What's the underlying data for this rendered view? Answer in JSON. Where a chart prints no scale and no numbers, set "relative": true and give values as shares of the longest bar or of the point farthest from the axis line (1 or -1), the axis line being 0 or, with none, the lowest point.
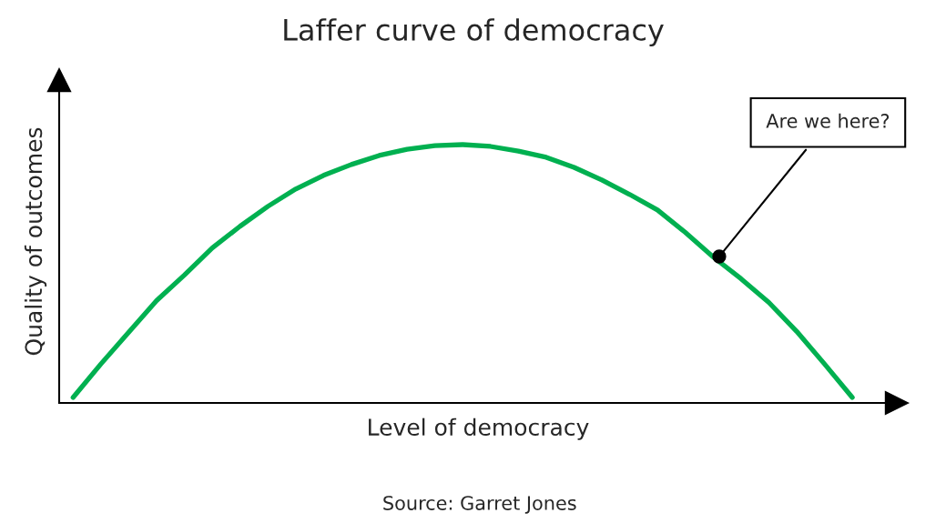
{
  "chart_data": {
    "type": "line",
    "title": "Laffer curve of democracy",
    "xlabel": "Level of democracy",
    "ylabel": "Quality of outcomes",
    "relative": true,
    "legend": false,
    "marker": "none",
    "line_style": "solid",
    "categories": [
      null,
      null,
      null,
      null,
      null,
      null,
      null,
      null,
      null,
      null,
      null,
      null,
      null,
      null,
      null,
      null,
      null,
      null,
      null,
      null,
      null,
      null,
      null,
      null,
      null,
      null,
      null,
      null,
      null
    ],
    "series": [
      {
        "color": "#00b050",
        "values": [
          0.021,
          0.151,
          0.274,
          0.396,
          0.495,
          0.6,
          0.684,
          0.761,
          0.828,
          0.881,
          0.923,
          0.958,
          0.982,
          0.996,
          1,
          0.993,
          0.975,
          0.951,
          0.912,
          0.863,
          0.807,
          0.747,
          0.66,
          0.565,
          0.481,
          0.389,
          0.277,
          0.151,
          0.021
        ]
      }
    ],
    "annotations": [
      "Are we here?",
      "Source: Garret Jones"
    ]
  }
}
